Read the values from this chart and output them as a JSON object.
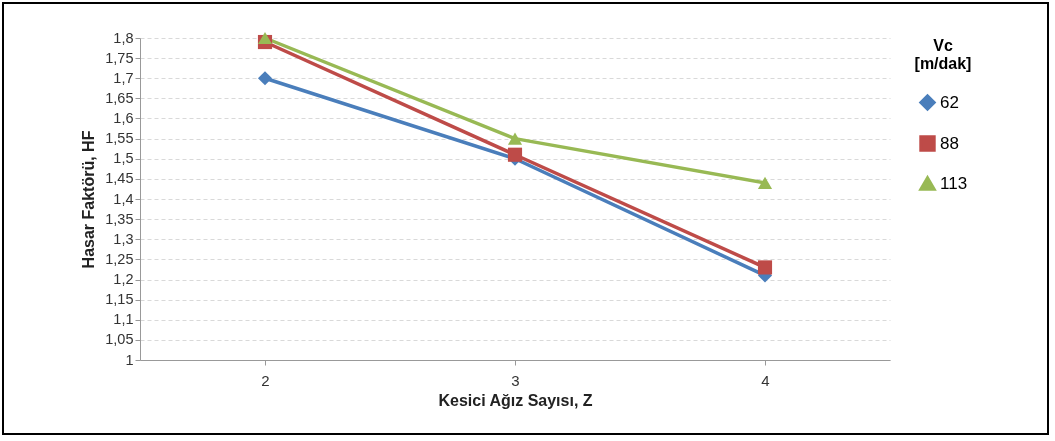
{
  "chart_data": {
    "type": "line",
    "xlabel": "Kesici Ağız Sayısı, Z",
    "ylabel": "Hasar Faktörü, HF",
    "legend_title": "Vc\n[m/dak]",
    "categories": [
      "2",
      "3",
      "4"
    ],
    "series": [
      {
        "name": "62",
        "color": "#4a7ebb",
        "marker": "diamond",
        "values": [
          1.7,
          1.5,
          1.21
        ]
      },
      {
        "name": "88",
        "color": "#be4b48",
        "marker": "square",
        "values": [
          1.79,
          1.51,
          1.23
        ]
      },
      {
        "name": "113",
        "color": "#98b954",
        "marker": "triangle",
        "values": [
          1.8,
          1.55,
          1.44
        ]
      }
    ],
    "ylim": [
      1,
      1.8
    ],
    "yticks": [
      1,
      {
        "value": 1.05,
        "label": "1,05"
      },
      {
        "value": 1.1,
        "label": "1,1"
      },
      {
        "value": 1.15,
        "label": "1,15"
      },
      {
        "value": 1.2,
        "label": "1,2"
      },
      {
        "value": 1.25,
        "label": "1,25"
      },
      {
        "value": 1.3,
        "label": "1,3"
      },
      {
        "value": 1.35,
        "label": "1,35"
      },
      {
        "value": 1.4,
        "label": "1,4"
      },
      {
        "value": 1.45,
        "label": "1,45"
      },
      {
        "value": 1.5,
        "label": "1,5"
      },
      {
        "value": 1.55,
        "label": "1,55"
      },
      {
        "value": 1.6,
        "label": "1,6"
      },
      {
        "value": 1.65,
        "label": "1,65"
      },
      {
        "value": 1.7,
        "label": "1,7"
      },
      {
        "value": 1.75,
        "label": "1,75"
      },
      {
        "value": 1.8,
        "label": "1,8"
      }
    ],
    "grid": "y",
    "legend": "right",
    "line_style": "solid"
  }
}
